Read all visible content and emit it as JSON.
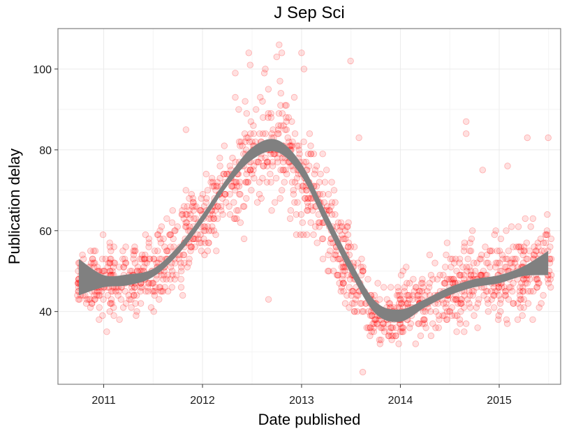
{
  "chart_data": {
    "type": "scatter",
    "title": "J Sep Sci",
    "xlabel": "Date published",
    "ylabel": "Publication delay",
    "xlim": [
      "2010-07-16",
      "2015-08-16"
    ],
    "ylim": [
      22,
      110
    ],
    "x_ticks": [
      "2011",
      "2012",
      "2013",
      "2014",
      "2015"
    ],
    "y_ticks": [
      "40",
      "60",
      "80",
      "100"
    ],
    "grid": true,
    "legend": "none",
    "colors": {
      "points": "#ff0000",
      "smooth_band": "#808080",
      "panel_border": "#7f7f7f",
      "grid": "#ebebeb"
    },
    "smooth": {
      "type": "loess band",
      "x": [
        "2010-10-01",
        "2011-01-01",
        "2011-04-01",
        "2011-07-01",
        "2011-10-01",
        "2012-01-01",
        "2012-04-01",
        "2012-07-01",
        "2012-10-01",
        "2013-01-01",
        "2013-04-01",
        "2013-07-01",
        "2013-10-01",
        "2014-01-01",
        "2014-04-01",
        "2014-07-01",
        "2014-10-01",
        "2015-01-01",
        "2015-04-01",
        "2015-07-01"
      ],
      "y": [
        48.5,
        47.5,
        47.8,
        49.5,
        55,
        63,
        72,
        79,
        81,
        75,
        63,
        51,
        41,
        39,
        42,
        45,
        47,
        48,
        50,
        52
      ],
      "ymin": [
        44,
        46,
        46.5,
        48.5,
        54,
        62,
        71,
        77.5,
        79.5,
        73.5,
        61.5,
        49.5,
        39.5,
        37.5,
        41,
        44,
        46,
        47,
        48.8,
        49
      ],
      "ymax": [
        53,
        49,
        49.2,
        50.5,
        56,
        64,
        73,
        80.5,
        82.5,
        76.5,
        64.5,
        52.5,
        42.5,
        40.5,
        43,
        46,
        48,
        49,
        51.2,
        55
      ]
    },
    "outliers": [
      {
        "x": "2011-11-01",
        "y": 85
      },
      {
        "x": "2012-05-01",
        "y": 99
      },
      {
        "x": "2012-05-01",
        "y": 93
      },
      {
        "x": "2012-06-20",
        "y": 104
      },
      {
        "x": "2012-06-25",
        "y": 101
      },
      {
        "x": "2012-08-20",
        "y": 100
      },
      {
        "x": "2012-10-01",
        "y": 103
      },
      {
        "x": "2012-10-10",
        "y": 106
      },
      {
        "x": "2012-10-20",
        "y": 104
      },
      {
        "x": "2013-01-01",
        "y": 104
      },
      {
        "x": "2013-01-10",
        "y": 100
      },
      {
        "x": "2013-07-01",
        "y": 102
      },
      {
        "x": "2013-08-01",
        "y": 83
      },
      {
        "x": "2012-09-01",
        "y": 43
      },
      {
        "x": "2013-08-15",
        "y": 25
      },
      {
        "x": "2014-09-01",
        "y": 87
      },
      {
        "x": "2014-09-01",
        "y": 84
      },
      {
        "x": "2015-04-15",
        "y": 83
      },
      {
        "x": "2015-07-01",
        "y": 83
      },
      {
        "x": "2015-02-01",
        "y": 76
      },
      {
        "x": "2014-11-01",
        "y": 75
      }
    ],
    "scatter_profile": [
      {
        "x": "2010-10-01",
        "y": 47,
        "spread": 6
      },
      {
        "x": "2011-01-01",
        "y": 47,
        "spread": 9
      },
      {
        "x": "2011-04-01",
        "y": 47,
        "spread": 8
      },
      {
        "x": "2011-07-01",
        "y": 49,
        "spread": 8
      },
      {
        "x": "2011-10-01",
        "y": 55,
        "spread": 9
      },
      {
        "x": "2012-01-01",
        "y": 63,
        "spread": 9
      },
      {
        "x": "2012-04-01",
        "y": 70,
        "spread": 12
      },
      {
        "x": "2012-07-01",
        "y": 77,
        "spread": 14
      },
      {
        "x": "2012-10-01",
        "y": 82,
        "spread": 11
      },
      {
        "x": "2013-01-01",
        "y": 75,
        "spread": 14
      },
      {
        "x": "2013-04-01",
        "y": 62,
        "spread": 12
      },
      {
        "x": "2013-07-01",
        "y": 50,
        "spread": 9
      },
      {
        "x": "2013-10-01",
        "y": 38,
        "spread": 7
      },
      {
        "x": "2014-01-01",
        "y": 40,
        "spread": 7
      },
      {
        "x": "2014-04-01",
        "y": 42,
        "spread": 8
      },
      {
        "x": "2014-07-01",
        "y": 45,
        "spread": 9
      },
      {
        "x": "2014-10-01",
        "y": 47,
        "spread": 9
      },
      {
        "x": "2015-01-01",
        "y": 48,
        "spread": 10
      },
      {
        "x": "2015-04-01",
        "y": 50,
        "spread": 11
      },
      {
        "x": "2015-07-01",
        "y": 52,
        "spread": 11
      }
    ]
  }
}
